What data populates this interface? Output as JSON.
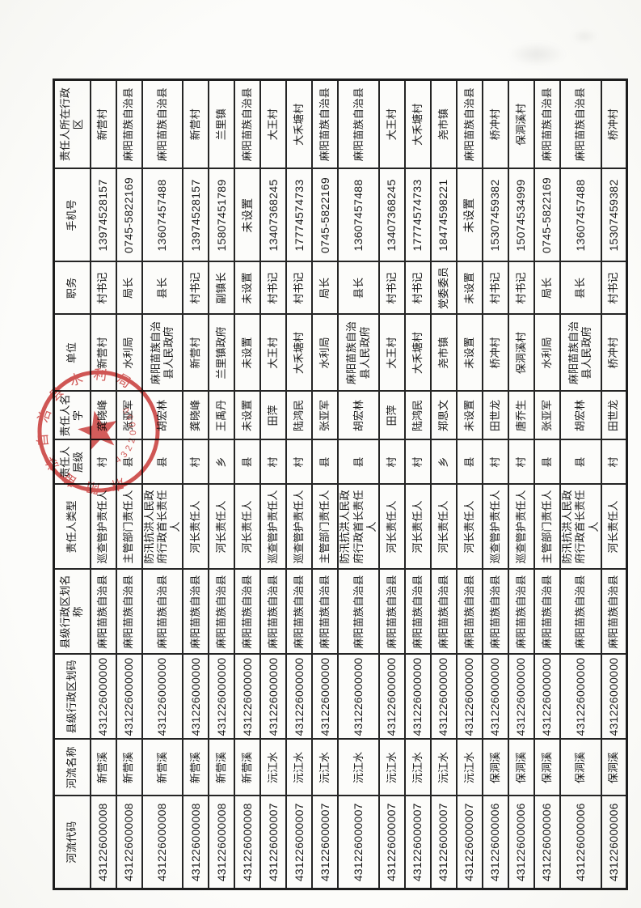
{
  "document": {
    "kind": "扫描件-河长制责任人信息表",
    "orientation": "rotated-90-ccw"
  },
  "table": {
    "columns": [
      {
        "key": "code",
        "label": "河流代码"
      },
      {
        "key": "river",
        "label": "河流名称"
      },
      {
        "key": "adm_code",
        "label": "县级行政区划码"
      },
      {
        "key": "adm_name",
        "label": "县级行政区划名称"
      },
      {
        "key": "type",
        "label": "责任人类型"
      },
      {
        "key": "level",
        "label": "责任人层级"
      },
      {
        "key": "name",
        "label": "责任人名字"
      },
      {
        "key": "unit",
        "label": "单位"
      },
      {
        "key": "title",
        "label": "职务"
      },
      {
        "key": "phone",
        "label": "手机号"
      },
      {
        "key": "region",
        "label": "责任人所在行政区"
      }
    ],
    "records": [
      {
        "code": "431226000008",
        "river": "新营溪",
        "adm_code": "431226000000",
        "adm_name": "麻阳苗族自治县",
        "type": "巡查管护责任人",
        "level": "村",
        "name": "龚晓峰",
        "unit": "新营村",
        "title": "村书记",
        "phone": "13974528157",
        "region": "新营村"
      },
      {
        "code": "431226000008",
        "river": "新营溪",
        "adm_code": "431226000000",
        "adm_name": "麻阳苗族自治县",
        "type": "主管部门责任人",
        "level": "县",
        "name": "张亚军",
        "unit": "水利局",
        "title": "局长",
        "phone": "0745-5822169",
        "region": "麻阳苗族自治县"
      },
      {
        "code": "431226000008",
        "river": "新营溪",
        "adm_code": "431226000000",
        "adm_name": "麻阳苗族自治县",
        "type": "防汛抗洪人民政府行政首长责任人",
        "level": "县",
        "name": "胡宏林",
        "unit": "麻阳苗族自治县人民政府",
        "title": "县长",
        "phone": "13607457488",
        "region": "麻阳苗族自治县"
      },
      {
        "code": "431226000008",
        "river": "新营溪",
        "adm_code": "431226000000",
        "adm_name": "麻阳苗族自治县",
        "type": "河长责任人",
        "level": "村",
        "name": "龚晓峰",
        "unit": "新营村",
        "title": "村书记",
        "phone": "13974528157",
        "region": "新营村"
      },
      {
        "code": "431226000008",
        "river": "新营溪",
        "adm_code": "431226000000",
        "adm_name": "麻阳苗族自治县",
        "type": "河长责任人",
        "level": "乡",
        "name": "王禹丹",
        "unit": "兰里镇政府",
        "title": "副镇长",
        "phone": "15807451789",
        "region": "兰里镇"
      },
      {
        "code": "431226000008",
        "river": "新营溪",
        "adm_code": "431226000000",
        "adm_name": "麻阳苗族自治县",
        "type": "河长责任人",
        "level": "县",
        "name": "未设置",
        "unit": "未设置",
        "title": "未设置",
        "phone": "未设置",
        "region": "麻阳苗族自治县"
      },
      {
        "code": "431226000007",
        "river": "沅江水",
        "adm_code": "431226000000",
        "adm_name": "麻阳苗族自治县",
        "type": "巡查管护责任人",
        "level": "村",
        "name": "田萍",
        "unit": "大王村",
        "title": "村书记",
        "phone": "13407368245",
        "region": "大王村"
      },
      {
        "code": "431226000007",
        "river": "沅江水",
        "adm_code": "431226000000",
        "adm_name": "麻阳苗族自治县",
        "type": "巡查管护责任人",
        "level": "村",
        "name": "陆鸿民",
        "unit": "大禾塘村",
        "title": "村书记",
        "phone": "17774574733",
        "region": "大禾塘村"
      },
      {
        "code": "431226000007",
        "river": "沅江水",
        "adm_code": "431226000000",
        "adm_name": "麻阳苗族自治县",
        "type": "主管部门责任人",
        "level": "县",
        "name": "张亚军",
        "unit": "水利局",
        "title": "局长",
        "phone": "0745-5822169",
        "region": "麻阳苗族自治县"
      },
      {
        "code": "431226000007",
        "river": "沅江水",
        "adm_code": "431226000000",
        "adm_name": "麻阳苗族自治县",
        "type": "防汛抗洪人民政府行政首长责任人",
        "level": "县",
        "name": "胡宏林",
        "unit": "麻阳苗族自治县人民政府",
        "title": "县长",
        "phone": "13607457488",
        "region": "麻阳苗族自治县"
      },
      {
        "code": "431226000007",
        "river": "沅江水",
        "adm_code": "431226000000",
        "adm_name": "麻阳苗族自治县",
        "type": "河长责任人",
        "level": "村",
        "name": "田萍",
        "unit": "大王村",
        "title": "村书记",
        "phone": "13407368245",
        "region": "大王村"
      },
      {
        "code": "431226000007",
        "river": "沅江水",
        "adm_code": "431226000000",
        "adm_name": "麻阳苗族自治县",
        "type": "河长责任人",
        "level": "村",
        "name": "陆鸿民",
        "unit": "大禾塘村",
        "title": "村书记",
        "phone": "17774574733",
        "region": "大禾塘村"
      },
      {
        "code": "431226000007",
        "river": "沅江水",
        "adm_code": "431226000000",
        "adm_name": "麻阳苗族自治县",
        "type": "河长责任人",
        "level": "乡",
        "name": "郑思文",
        "unit": "尧市镇",
        "title": "党委委员",
        "phone": "18474598221",
        "region": "尧市镇"
      },
      {
        "code": "431226000007",
        "river": "沅江水",
        "adm_code": "431226000000",
        "adm_name": "麻阳苗族自治县",
        "type": "河长责任人",
        "level": "县",
        "name": "未设置",
        "unit": "未设置",
        "title": "未设置",
        "phone": "未设置",
        "region": "麻阳苗族自治县"
      },
      {
        "code": "431226000006",
        "river": "保洞溪",
        "adm_code": "431226000000",
        "adm_name": "麻阳苗族自治县",
        "type": "巡查管护责任人",
        "level": "村",
        "name": "田世龙",
        "unit": "桥冲村",
        "title": "村书记",
        "phone": "15307459382",
        "region": "桥冲村"
      },
      {
        "code": "431226000006",
        "river": "保洞溪",
        "adm_code": "431226000000",
        "adm_name": "麻阳苗族自治县",
        "type": "巡查管护责任人",
        "level": "村",
        "name": "唐乔生",
        "unit": "保洞溪村",
        "title": "村书记",
        "phone": "15074534999",
        "region": "保洞溪村"
      },
      {
        "code": "431226000006",
        "river": "保洞溪",
        "adm_code": "431226000000",
        "adm_name": "麻阳苗族自治县",
        "type": "主管部门责任人",
        "level": "县",
        "name": "张亚军",
        "unit": "水利局",
        "title": "局长",
        "phone": "0745-5822169",
        "region": "麻阳苗族自治县"
      },
      {
        "code": "431226000006",
        "river": "保洞溪",
        "adm_code": "431226000000",
        "adm_name": "麻阳苗族自治县",
        "type": "防汛抗洪人民政府行政首长责任人",
        "level": "县",
        "name": "胡宏林",
        "unit": "麻阳苗族自治县人民政府",
        "title": "县长",
        "phone": "13607457488",
        "region": "麻阳苗族自治县"
      },
      {
        "code": "431226000006",
        "river": "保洞溪",
        "adm_code": "431226000000",
        "adm_name": "麻阳苗族自治县",
        "type": "河长责任人",
        "level": "村",
        "name": "田世龙",
        "unit": "桥冲村",
        "title": "村书记",
        "phone": "15307459382",
        "region": "桥冲村"
      }
    ]
  },
  "stamp": {
    "org_text": "麻阳苗族自治县水利局",
    "code_text": "43220000",
    "star_icon": "red-star",
    "color": "#c93e3c"
  }
}
